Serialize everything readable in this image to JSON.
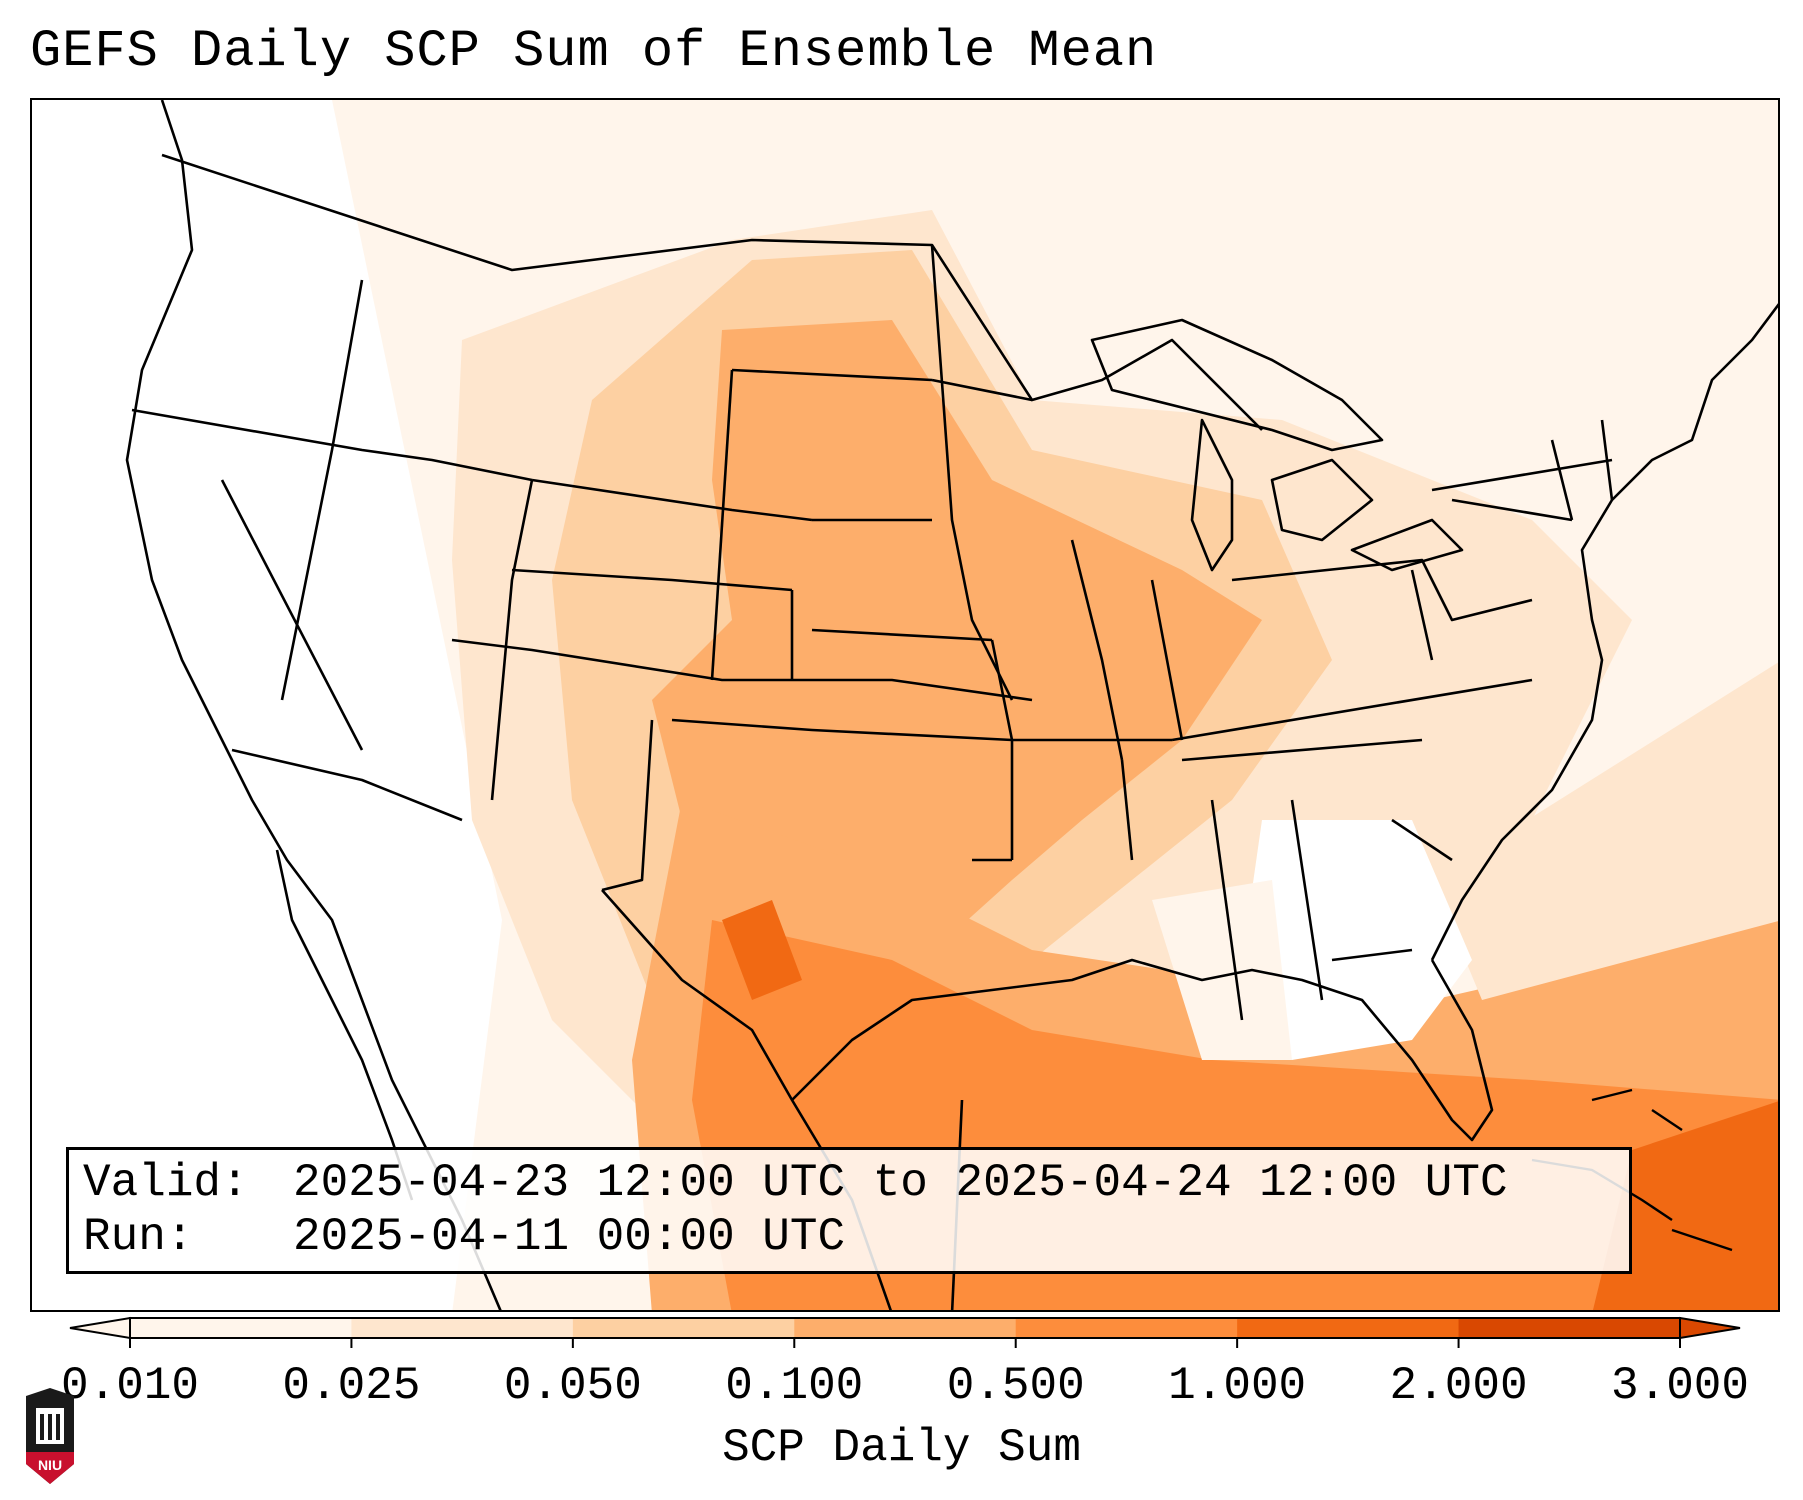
{
  "title": "GEFS Daily SCP Sum of Ensemble Mean",
  "info": {
    "valid_label": "Valid:",
    "valid_value": "2025-04-23 12:00 UTC to 2025-04-24 12:00 UTC",
    "run_label": "Run:",
    "run_value": "2025-04-11 00:00 UTC"
  },
  "colorbar": {
    "label": "SCP Daily Sum",
    "ticks": [
      "0.010",
      "0.025",
      "0.050",
      "0.100",
      "0.500",
      "1.000",
      "2.000",
      "3.000"
    ],
    "colors": [
      "#fff5eb",
      "#fee6ce",
      "#fdd0a2",
      "#fdae6b",
      "#fd8d3c",
      "#f16913",
      "#d94801"
    ],
    "extend": "both"
  },
  "logo": {
    "text": "NIU",
    "colors": {
      "shield": "#1a1a1a",
      "band": "#c8102e"
    }
  }
}
